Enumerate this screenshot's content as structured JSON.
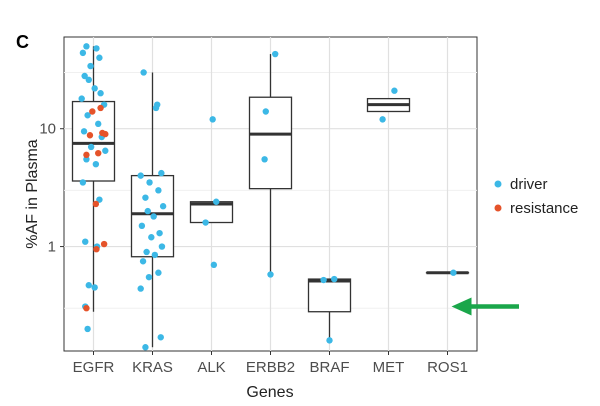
{
  "panel_label": "C",
  "chart_data": {
    "type": "box",
    "xlabel": "Genes",
    "ylabel": "%AF in Plasma",
    "y_scale": "log10",
    "ylim": [
      0.13,
      60
    ],
    "y_ticks": [
      1,
      10
    ],
    "y_tick_labels": [
      "1",
      "10"
    ],
    "grid": true,
    "legend_position": "right",
    "categories": [
      "EGFR",
      "KRAS",
      "ALK",
      "ERBB2",
      "BRAF",
      "MET",
      "ROS1"
    ],
    "legend": [
      {
        "name": "driver",
        "color": "#3cb8e6"
      },
      {
        "name": "resistance",
        "color": "#e5532a"
      }
    ],
    "boxes": [
      {
        "category": "EGFR",
        "whisker_low": 0.28,
        "q1": 3.6,
        "median": 7.5,
        "q3": 17,
        "whisker_high": 50
      },
      {
        "category": "KRAS",
        "whisker_low": 0.14,
        "q1": 0.82,
        "median": 1.9,
        "q3": 4.0,
        "whisker_high": 30
      },
      {
        "category": "ALK",
        "whisker_low": 1.6,
        "q1": 1.6,
        "median": 2.3,
        "q3": 2.4,
        "whisker_high": 2.4
      },
      {
        "category": "ERBB2",
        "whisker_low": 0.58,
        "q1": 3.1,
        "median": 9.0,
        "q3": 18.5,
        "whisker_high": 43
      },
      {
        "category": "BRAF",
        "whisker_low": 0.16,
        "q1": 0.28,
        "median": 0.51,
        "q3": 0.53,
        "whisker_high": 0.53
      },
      {
        "category": "MET",
        "whisker_low": 14,
        "q1": 14,
        "median": 16,
        "q3": 18,
        "whisker_high": 18
      },
      {
        "category": "ROS1",
        "whisker_low": 0.6,
        "q1": 0.6,
        "median": 0.6,
        "q3": 0.6,
        "whisker_high": 0.6
      }
    ],
    "points": {
      "driver": [
        {
          "category": "EGFR",
          "jitter": -0.12,
          "y": 50
        },
        {
          "category": "EGFR",
          "jitter": 0.05,
          "y": 48
        },
        {
          "category": "EGFR",
          "jitter": -0.18,
          "y": 44
        },
        {
          "category": "EGFR",
          "jitter": 0.1,
          "y": 40
        },
        {
          "category": "EGFR",
          "jitter": -0.05,
          "y": 34
        },
        {
          "category": "EGFR",
          "jitter": -0.15,
          "y": 28
        },
        {
          "category": "EGFR",
          "jitter": -0.08,
          "y": 26
        },
        {
          "category": "EGFR",
          "jitter": 0.02,
          "y": 22
        },
        {
          "category": "EGFR",
          "jitter": 0.12,
          "y": 20
        },
        {
          "category": "EGFR",
          "jitter": -0.2,
          "y": 18
        },
        {
          "category": "EGFR",
          "jitter": 0.18,
          "y": 16
        },
        {
          "category": "EGFR",
          "jitter": -0.1,
          "y": 13
        },
        {
          "category": "EGFR",
          "jitter": 0.08,
          "y": 11
        },
        {
          "category": "EGFR",
          "jitter": -0.16,
          "y": 9.5
        },
        {
          "category": "EGFR",
          "jitter": 0.14,
          "y": 8.5
        },
        {
          "category": "EGFR",
          "jitter": -0.04,
          "y": 7
        },
        {
          "category": "EGFR",
          "jitter": 0.2,
          "y": 6.5
        },
        {
          "category": "EGFR",
          "jitter": -0.12,
          "y": 5.5
        },
        {
          "category": "EGFR",
          "jitter": 0.04,
          "y": 5
        },
        {
          "category": "EGFR",
          "jitter": -0.18,
          "y": 3.5
        },
        {
          "category": "EGFR",
          "jitter": 0.1,
          "y": 2.5
        },
        {
          "category": "EGFR",
          "jitter": -0.14,
          "y": 1.1
        },
        {
          "category": "EGFR",
          "jitter": 0.06,
          "y": 1.0
        },
        {
          "category": "EGFR",
          "jitter": -0.08,
          "y": 0.47
        },
        {
          "category": "EGFR",
          "jitter": 0.02,
          "y": 0.45
        },
        {
          "category": "EGFR",
          "jitter": -0.14,
          "y": 0.31
        },
        {
          "category": "EGFR",
          "jitter": -0.1,
          "y": 0.2
        },
        {
          "category": "KRAS",
          "jitter": -0.15,
          "y": 30
        },
        {
          "category": "KRAS",
          "jitter": 0.08,
          "y": 16
        },
        {
          "category": "KRAS",
          "jitter": 0.06,
          "y": 15
        },
        {
          "category": "KRAS",
          "jitter": 0.15,
          "y": 4.2
        },
        {
          "category": "KRAS",
          "jitter": -0.2,
          "y": 4.0
        },
        {
          "category": "KRAS",
          "jitter": -0.05,
          "y": 3.5
        },
        {
          "category": "KRAS",
          "jitter": 0.1,
          "y": 3.0
        },
        {
          "category": "KRAS",
          "jitter": -0.12,
          "y": 2.6
        },
        {
          "category": "KRAS",
          "jitter": 0.18,
          "y": 2.2
        },
        {
          "category": "KRAS",
          "jitter": -0.08,
          "y": 2.0
        },
        {
          "category": "KRAS",
          "jitter": 0.02,
          "y": 1.8
        },
        {
          "category": "KRAS",
          "jitter": -0.18,
          "y": 1.5
        },
        {
          "category": "KRAS",
          "jitter": 0.12,
          "y": 1.3
        },
        {
          "category": "KRAS",
          "jitter": -0.02,
          "y": 1.2
        },
        {
          "category": "KRAS",
          "jitter": 0.16,
          "y": 1.0
        },
        {
          "category": "KRAS",
          "jitter": -0.1,
          "y": 0.9
        },
        {
          "category": "KRAS",
          "jitter": 0.04,
          "y": 0.85
        },
        {
          "category": "KRAS",
          "jitter": -0.16,
          "y": 0.75
        },
        {
          "category": "KRAS",
          "jitter": 0.1,
          "y": 0.6
        },
        {
          "category": "KRAS",
          "jitter": -0.06,
          "y": 0.55
        },
        {
          "category": "KRAS",
          "jitter": -0.2,
          "y": 0.44
        },
        {
          "category": "KRAS",
          "jitter": 0.14,
          "y": 0.17
        },
        {
          "category": "KRAS",
          "jitter": -0.12,
          "y": 0.14
        },
        {
          "category": "ALK",
          "jitter": 0.02,
          "y": 12
        },
        {
          "category": "ALK",
          "jitter": 0.08,
          "y": 2.4
        },
        {
          "category": "ALK",
          "jitter": -0.1,
          "y": 1.6
        },
        {
          "category": "ALK",
          "jitter": 0.04,
          "y": 0.7
        },
        {
          "category": "ERBB2",
          "jitter": 0.08,
          "y": 43
        },
        {
          "category": "ERBB2",
          "jitter": -0.08,
          "y": 14
        },
        {
          "category": "ERBB2",
          "jitter": -0.1,
          "y": 5.5
        },
        {
          "category": "ERBB2",
          "jitter": 0.0,
          "y": 0.58
        },
        {
          "category": "BRAF",
          "jitter": -0.1,
          "y": 0.52
        },
        {
          "category": "BRAF",
          "jitter": 0.08,
          "y": 0.53
        },
        {
          "category": "BRAF",
          "jitter": 0.0,
          "y": 0.16
        },
        {
          "category": "MET",
          "jitter": 0.1,
          "y": 21
        },
        {
          "category": "MET",
          "jitter": -0.1,
          "y": 12
        },
        {
          "category": "ROS1",
          "jitter": 0.1,
          "y": 0.6
        }
      ],
      "resistance": [
        {
          "category": "EGFR",
          "jitter": 0.12,
          "y": 15
        },
        {
          "category": "EGFR",
          "jitter": -0.02,
          "y": 14
        },
        {
          "category": "EGFR",
          "jitter": 0.15,
          "y": 9.2
        },
        {
          "category": "EGFR",
          "jitter": -0.06,
          "y": 8.8
        },
        {
          "category": "EGFR",
          "jitter": 0.2,
          "y": 9.0
        },
        {
          "category": "EGFR",
          "jitter": 0.08,
          "y": 6.2
        },
        {
          "category": "EGFR",
          "jitter": -0.12,
          "y": 6.0
        },
        {
          "category": "EGFR",
          "jitter": 0.04,
          "y": 2.3
        },
        {
          "category": "EGFR",
          "jitter": 0.18,
          "y": 1.05
        },
        {
          "category": "EGFR",
          "jitter": 0.05,
          "y": 0.95
        },
        {
          "category": "EGFR",
          "jitter": -0.12,
          "y": 0.3
        }
      ]
    },
    "arrow": {
      "color": "#1aa64a",
      "points_to": "ROS1",
      "y": 0.31
    }
  }
}
